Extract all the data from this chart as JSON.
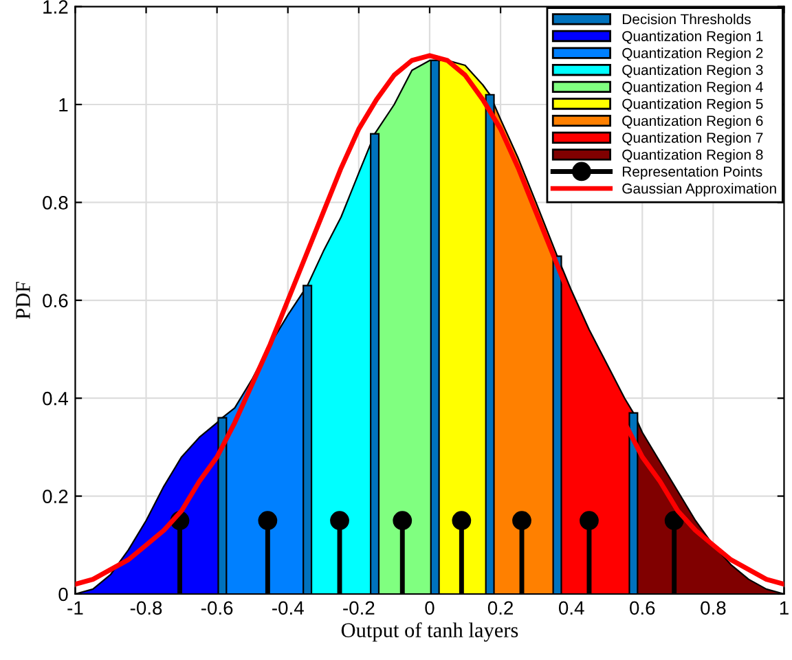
{
  "chart_data": {
    "type": "area",
    "xlabel": "Output of tanh layers",
    "ylabel": "PDF",
    "xlim": [
      -1,
      1
    ],
    "ylim": [
      0,
      1.2
    ],
    "xticks": [
      -1,
      -0.8,
      -0.6,
      -0.4,
      -0.2,
      0,
      0.2,
      0.4,
      0.6,
      0.8,
      1
    ],
    "yticks": [
      0,
      0.2,
      0.4,
      0.6,
      0.8,
      1,
      1.2
    ],
    "grid": true,
    "legend": "top right",
    "series": [
      {
        "name": "Decision Thresholds",
        "type": "bar",
        "color": "#0072bd",
        "x": [
          -0.585,
          -0.345,
          -0.155,
          0.015,
          0.17,
          0.36,
          0.575
        ],
        "values": [
          0.36,
          0.63,
          0.94,
          1.09,
          1.02,
          0.69,
          0.37
        ]
      },
      {
        "name": "Quantization Region 1",
        "color": "#0000ff",
        "x": [
          -1,
          -0.95,
          -0.9,
          -0.85,
          -0.8,
          -0.75,
          -0.7,
          -0.65,
          -0.6,
          -0.585
        ],
        "values": [
          0,
          0.01,
          0.04,
          0.09,
          0.15,
          0.22,
          0.28,
          0.32,
          0.35,
          0.36
        ]
      },
      {
        "name": "Quantization Region 2",
        "color": "#0080ff",
        "x": [
          -0.585,
          -0.55,
          -0.5,
          -0.45,
          -0.4,
          -0.345
        ],
        "values": [
          0.36,
          0.38,
          0.44,
          0.51,
          0.57,
          0.63
        ]
      },
      {
        "name": "Quantization Region 3",
        "color": "#00ffff",
        "x": [
          -0.345,
          -0.3,
          -0.25,
          -0.2,
          -0.155
        ],
        "values": [
          0.63,
          0.7,
          0.77,
          0.86,
          0.94
        ]
      },
      {
        "name": "Quantization Region 4",
        "color": "#80ff80",
        "x": [
          -0.155,
          -0.1,
          -0.05,
          0,
          0.015
        ],
        "values": [
          0.94,
          1.0,
          1.07,
          1.09,
          1.09
        ]
      },
      {
        "name": "Quantization Region 5",
        "color": "#ffff00",
        "x": [
          0.015,
          0.05,
          0.1,
          0.15,
          0.17
        ],
        "values": [
          1.09,
          1.09,
          1.08,
          1.04,
          1.02
        ]
      },
      {
        "name": "Quantization Region 6",
        "color": "#ff8000",
        "x": [
          0.17,
          0.2,
          0.25,
          0.3,
          0.36
        ],
        "values": [
          1.02,
          0.97,
          0.89,
          0.8,
          0.69
        ]
      },
      {
        "name": "Quantization Region 7",
        "color": "#ff0000",
        "x": [
          0.36,
          0.4,
          0.45,
          0.5,
          0.55,
          0.575
        ],
        "values": [
          0.69,
          0.62,
          0.54,
          0.47,
          0.4,
          0.37
        ]
      },
      {
        "name": "Quantization Region 8",
        "color": "#800000",
        "x": [
          0.575,
          0.6,
          0.65,
          0.7,
          0.75,
          0.8,
          0.85,
          0.9,
          0.95,
          1.0
        ],
        "values": [
          0.37,
          0.33,
          0.27,
          0.21,
          0.15,
          0.1,
          0.06,
          0.03,
          0.01,
          0
        ]
      },
      {
        "name": "Representation Points",
        "type": "lollipop",
        "color": "#000000",
        "marker": "circle",
        "x": [
          -0.705,
          -0.457,
          -0.254,
          -0.077,
          0.09,
          0.26,
          0.45,
          0.69
        ],
        "values": [
          0.15,
          0.15,
          0.15,
          0.15,
          0.15,
          0.15,
          0.15,
          0.15
        ]
      },
      {
        "name": "Gaussian Approximation",
        "type": "line",
        "color": "#ff0000",
        "marker": "none",
        "line_style": "solid",
        "x": [
          -1,
          -0.95,
          -0.9,
          -0.85,
          -0.8,
          -0.75,
          -0.7,
          -0.65,
          -0.6,
          -0.55,
          -0.5,
          -0.45,
          -0.4,
          -0.35,
          -0.3,
          -0.25,
          -0.2,
          -0.15,
          -0.1,
          -0.05,
          0,
          0.05,
          0.1,
          0.15,
          0.2,
          0.25,
          0.3,
          0.35,
          0.4,
          0.45,
          0.5,
          0.55,
          0.6,
          0.65,
          0.7,
          0.75,
          0.8,
          0.85,
          0.9,
          0.95,
          1
        ],
        "values": [
          0.02,
          0.03,
          0.05,
          0.07,
          0.1,
          0.13,
          0.17,
          0.23,
          0.28,
          0.35,
          0.43,
          0.51,
          0.6,
          0.69,
          0.78,
          0.87,
          0.95,
          1.01,
          1.06,
          1.09,
          1.1,
          1.09,
          1.06,
          1.01,
          0.95,
          0.87,
          0.78,
          0.69,
          0.6,
          0.51,
          0.43,
          0.35,
          0.28,
          0.23,
          0.17,
          0.13,
          0.1,
          0.07,
          0.05,
          0.03,
          0.02
        ]
      }
    ]
  }
}
